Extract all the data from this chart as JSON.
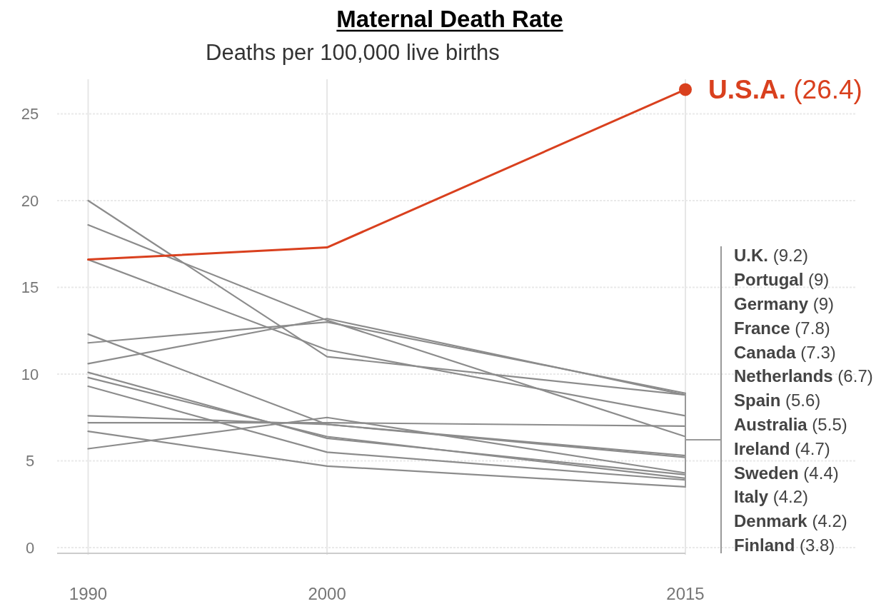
{
  "chart_data": {
    "type": "line",
    "title": "Maternal Death Rate",
    "ylabel": "Deaths per 100,000 live births",
    "x": [
      1990,
      2000,
      2015
    ],
    "xlim": [
      1988.7,
      2015
    ],
    "xticks": [
      1990,
      2000,
      2015
    ],
    "ylim": [
      0,
      27
    ],
    "yticks": [
      0,
      5,
      10,
      15,
      20,
      25
    ],
    "grid": true,
    "legend": false,
    "line_style": "solid",
    "series": [
      {
        "color": "#8c8c8c",
        "values": [
          20.0,
          11.0,
          8.8
        ]
      },
      {
        "color": "#8c8c8c",
        "values": [
          18.6,
          13.1,
          6.4
        ]
      },
      {
        "color": "#8c8c8c",
        "values": [
          16.6,
          11.4,
          7.6
        ]
      },
      {
        "color": "#8c8c8c",
        "values": [
          12.3,
          7.1,
          5.2
        ]
      },
      {
        "color": "#8c8c8c",
        "values": [
          11.8,
          13.0,
          8.9
        ]
      },
      {
        "color": "#8c8c8c",
        "values": [
          10.6,
          13.2,
          8.8
        ]
      },
      {
        "color": "#8c8c8c",
        "values": [
          10.1,
          6.3,
          4.2
        ]
      },
      {
        "color": "#8c8c8c",
        "values": [
          9.8,
          6.4,
          4.0
        ]
      },
      {
        "color": "#8c8c8c",
        "values": [
          9.3,
          5.5,
          3.9
        ]
      },
      {
        "color": "#8c8c8c",
        "values": [
          7.6,
          7.1,
          5.3
        ]
      },
      {
        "color": "#8c8c8c",
        "values": [
          7.2,
          7.2,
          7.0
        ]
      },
      {
        "color": "#8c8c8c",
        "values": [
          6.7,
          4.7,
          3.5
        ]
      },
      {
        "color": "#8c8c8c",
        "values": [
          5.7,
          7.5,
          4.3
        ]
      },
      {
        "name": "U.S.A. (26.4)",
        "color": "#d9401e",
        "values": [
          16.6,
          17.3,
          26.4
        ]
      }
    ],
    "annotations": [
      "U.K. (9.2)",
      "Portugal (9)",
      "Germany (9)",
      "France (7.8)",
      "Canada (7.3)",
      "Netherlands (6.7)",
      "Spain (5.6)",
      "Australia (5.5)",
      "Ireland (4.7)",
      "Sweden (4.4)",
      "Italy (4.2)",
      "Denmark (4.2)",
      "Finland (3.8)"
    ]
  }
}
